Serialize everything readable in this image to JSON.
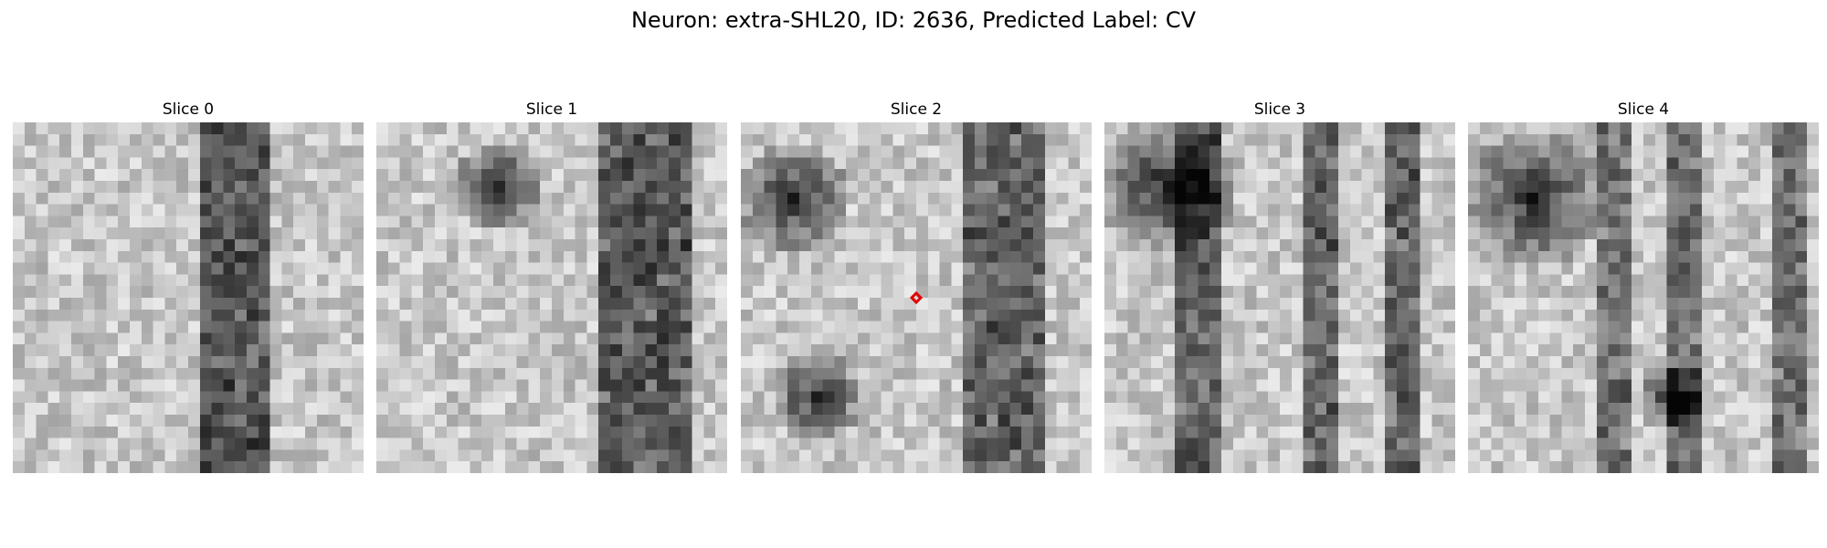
{
  "figure": {
    "title": "Neuron: extra-SHL20, ID: 2636, Predicted Label: CV"
  },
  "panels": [
    {
      "title": "Slice 0",
      "seed": 11,
      "marked": false
    },
    {
      "title": "Slice 1",
      "seed": 23,
      "marked": false
    },
    {
      "title": "Slice 2",
      "seed": 37,
      "marked": true
    },
    {
      "title": "Slice 3",
      "seed": 51,
      "marked": false
    },
    {
      "title": "Slice 4",
      "seed": 67,
      "marked": false
    }
  ],
  "colors": {
    "marker": "#e00000",
    "colormap": "grayscale"
  }
}
